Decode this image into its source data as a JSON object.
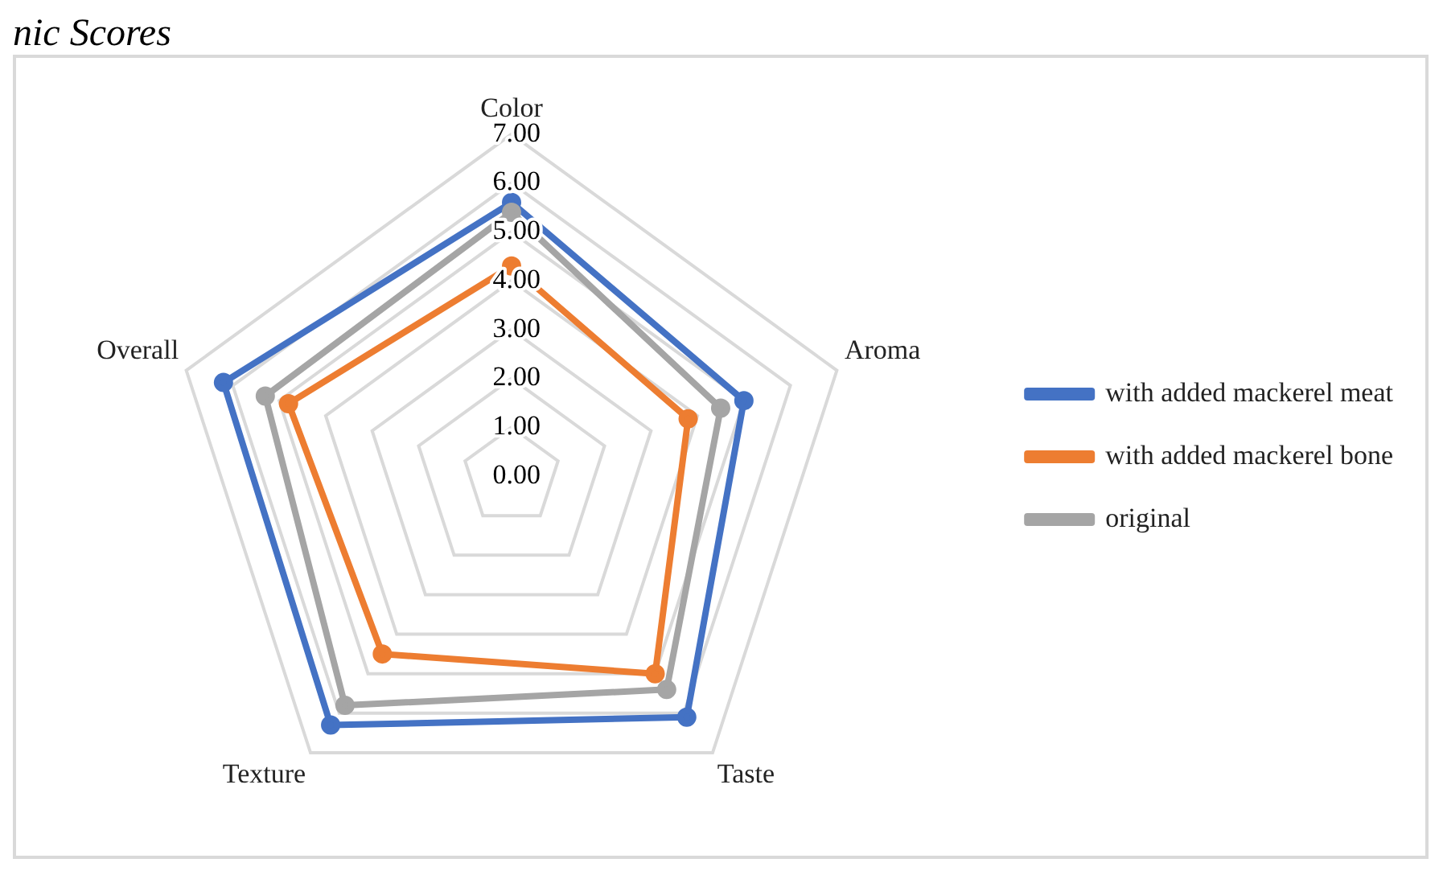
{
  "chart_data": {
    "type": "radar",
    "title": "nic Scores",
    "categories": [
      "Color",
      "Aroma",
      "Taste",
      "Texture",
      "Overall"
    ],
    "series": [
      {
        "name": "with added mackerel meat",
        "color": "#4472c4",
        "values": [
          5.6,
          5.0,
          6.1,
          6.3,
          6.2
        ]
      },
      {
        "name": "with added mackerel bone",
        "color": "#ed7d31",
        "values": [
          4.3,
          3.8,
          5.0,
          4.5,
          4.8
        ]
      },
      {
        "name": "original",
        "color": "#a5a5a5",
        "values": [
          5.4,
          4.5,
          5.4,
          5.8,
          5.3
        ]
      }
    ],
    "ylim": [
      0,
      7
    ],
    "yticks": [
      {
        "value": 0,
        "label": "0.00"
      },
      {
        "value": 1,
        "label": "1.00"
      },
      {
        "value": 2,
        "label": "2.00"
      },
      {
        "value": 3,
        "label": "3.00"
      },
      {
        "value": 4,
        "label": "4.00"
      },
      {
        "value": 5,
        "label": "5.00"
      },
      {
        "value": 6,
        "label": "6.00"
      },
      {
        "value": 7,
        "label": "7.00"
      }
    ],
    "grid": true,
    "legend": "right",
    "marker": "circle",
    "line_style": "solid"
  }
}
